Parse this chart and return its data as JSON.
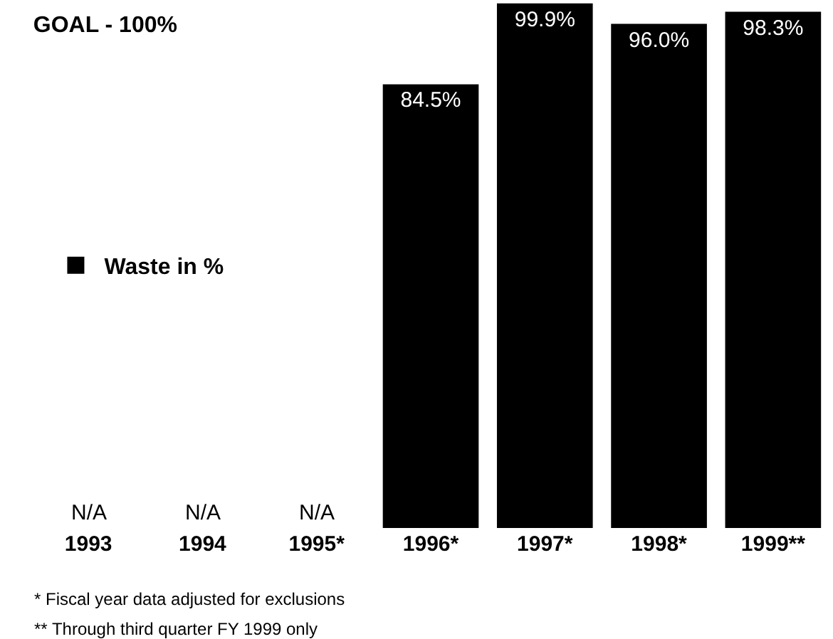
{
  "chart_data": {
    "type": "bar",
    "title": "GOAL - 100%",
    "categories": [
      "1993",
      "1994",
      "1995*",
      "1996*",
      "1997*",
      "1998*",
      "1999**"
    ],
    "series": [
      {
        "name": "Waste in %",
        "color": "#000000",
        "values": [
          null,
          null,
          null,
          84.5,
          99.9,
          96.0,
          98.3
        ],
        "value_labels": [
          "N/A",
          "N/A",
          "N/A",
          "84.5%",
          "99.9%",
          "96.0%",
          "98.3%"
        ]
      }
    ],
    "ylim": [
      0,
      100
    ],
    "tick_labels": "x",
    "legend": "left",
    "annotations": [
      "* Fiscal year data adjusted for exclusions",
      "** Through third quarter FY 1999 only"
    ]
  }
}
